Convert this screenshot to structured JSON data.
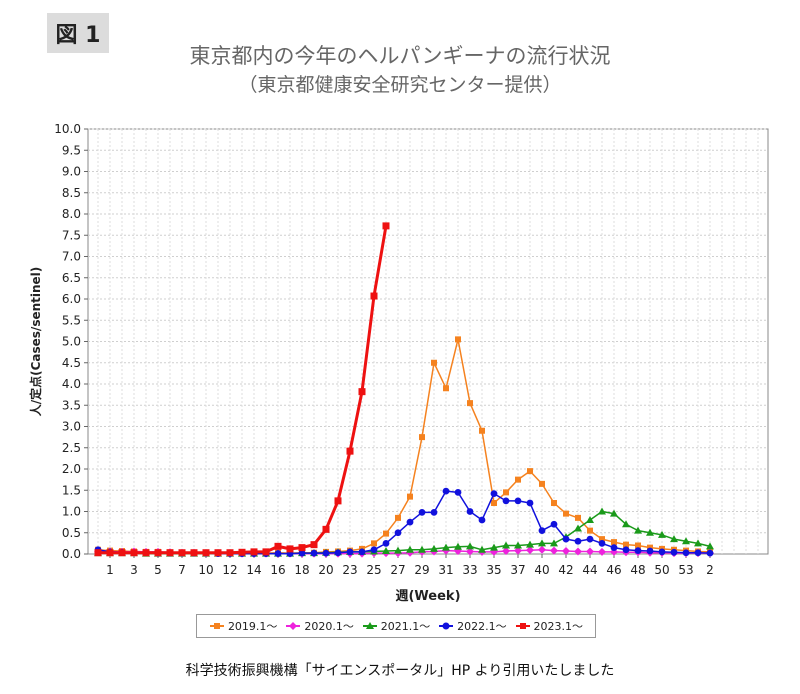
{
  "figure_label": "図 1",
  "title": "東京都内の今年のヘルパンギーナの流行状況",
  "subtitle": "（東京都健康安全研究センター提供）",
  "caption": "科学技術振興機構「サイエンスポータル」HP より引用いたしました",
  "chart_data": {
    "type": "line",
    "xlabel": "週(Week)",
    "ylabel": "人/定点(Cases/sentinel)",
    "ylim": [
      0,
      10
    ],
    "yticks": [
      "0.0",
      "0.5",
      "1.0",
      "1.5",
      "2.0",
      "2.5",
      "3.0",
      "3.5",
      "4.0",
      "4.5",
      "5.0",
      "5.5",
      "6.0",
      "6.5",
      "7.0",
      "7.5",
      "8.0",
      "8.5",
      "9.0",
      "9.5",
      "10.0"
    ],
    "xtick_labels": [
      "1",
      "3",
      "5",
      "7",
      "10",
      "12",
      "14",
      "16",
      "18",
      "20",
      "23",
      "25",
      "27",
      "29",
      "31",
      "33",
      "35",
      "37",
      "40",
      "42",
      "44",
      "46",
      "48",
      "50",
      "53",
      "2"
    ],
    "grid": true,
    "legend_position": "bottom",
    "series": [
      {
        "name": "2019.1～",
        "color": "#f5821f",
        "marker": "square",
        "values": [
          0.1,
          0.08,
          0.07,
          0.06,
          0.05,
          0.05,
          0.04,
          0.03,
          0.03,
          0.03,
          0.02,
          0.02,
          0.02,
          0.03,
          0.02,
          0.03,
          0.02,
          0.03,
          0.03,
          0.05,
          0.06,
          0.08,
          0.12,
          0.25,
          0.48,
          0.85,
          1.35,
          2.75,
          4.5,
          3.9,
          5.05,
          3.55,
          2.9,
          1.2,
          1.45,
          1.75,
          1.95,
          1.65,
          1.2,
          0.95,
          0.85,
          0.55,
          0.35,
          0.28,
          0.22,
          0.2,
          0.15,
          0.12,
          0.1,
          0.08,
          0.06,
          0.05
        ]
      },
      {
        "name": "2020.1～",
        "color": "#ee22dd",
        "marker": "diamond",
        "values": [
          0.05,
          0.06,
          0.05,
          0.06,
          0.05,
          0.05,
          0.04,
          0.03,
          0.03,
          0.02,
          0.02,
          0.02,
          0.01,
          0.01,
          0.01,
          0.01,
          0.01,
          0.01,
          0.01,
          0.01,
          0.01,
          0.01,
          0.01,
          0.02,
          0.02,
          0.02,
          0.03,
          0.05,
          0.06,
          0.08,
          0.07,
          0.06,
          0.05,
          0.05,
          0.07,
          0.08,
          0.09,
          0.1,
          0.08,
          0.07,
          0.06,
          0.06,
          0.05,
          0.05,
          0.04,
          0.04,
          0.03,
          0.03,
          0.02,
          0.02,
          0.02,
          0.02
        ]
      },
      {
        "name": "2021.1～",
        "color": "#1a9a1a",
        "marker": "triangle",
        "values": [
          0.02,
          0.02,
          0.02,
          0.02,
          0.01,
          0.01,
          0.01,
          0.01,
          0.01,
          0.01,
          0.01,
          0.01,
          0.01,
          0.01,
          0.01,
          0.01,
          0.01,
          0.02,
          0.02,
          0.03,
          0.04,
          0.05,
          0.05,
          0.06,
          0.07,
          0.08,
          0.1,
          0.1,
          0.12,
          0.15,
          0.17,
          0.18,
          0.1,
          0.15,
          0.2,
          0.2,
          0.22,
          0.25,
          0.25,
          0.4,
          0.6,
          0.8,
          1.0,
          0.95,
          0.7,
          0.55,
          0.5,
          0.45,
          0.35,
          0.3,
          0.25,
          0.18
        ]
      },
      {
        "name": "2022.1～",
        "color": "#1111dd",
        "marker": "circle",
        "values": [
          0.1,
          0.05,
          0.04,
          0.03,
          0.03,
          0.02,
          0.02,
          0.02,
          0.02,
          0.02,
          0.01,
          0.01,
          0.01,
          0.01,
          0.01,
          0.01,
          0.01,
          0.02,
          0.02,
          0.02,
          0.03,
          0.05,
          0.05,
          0.1,
          0.25,
          0.5,
          0.75,
          0.98,
          0.98,
          1.48,
          1.45,
          1.0,
          0.8,
          1.42,
          1.25,
          1.25,
          1.2,
          0.55,
          0.7,
          0.35,
          0.3,
          0.35,
          0.25,
          0.15,
          0.1,
          0.08,
          0.07,
          0.05,
          0.04,
          0.03,
          0.03,
          0.02
        ]
      },
      {
        "name": "2023.1～",
        "color": "#ee1111",
        "marker": "square",
        "values": [
          0.03,
          0.03,
          0.03,
          0.03,
          0.03,
          0.03,
          0.03,
          0.03,
          0.03,
          0.03,
          0.03,
          0.03,
          0.04,
          0.05,
          0.05,
          0.18,
          0.12,
          0.15,
          0.22,
          0.58,
          1.25,
          2.42,
          3.82,
          6.07,
          7.72
        ]
      }
    ]
  }
}
